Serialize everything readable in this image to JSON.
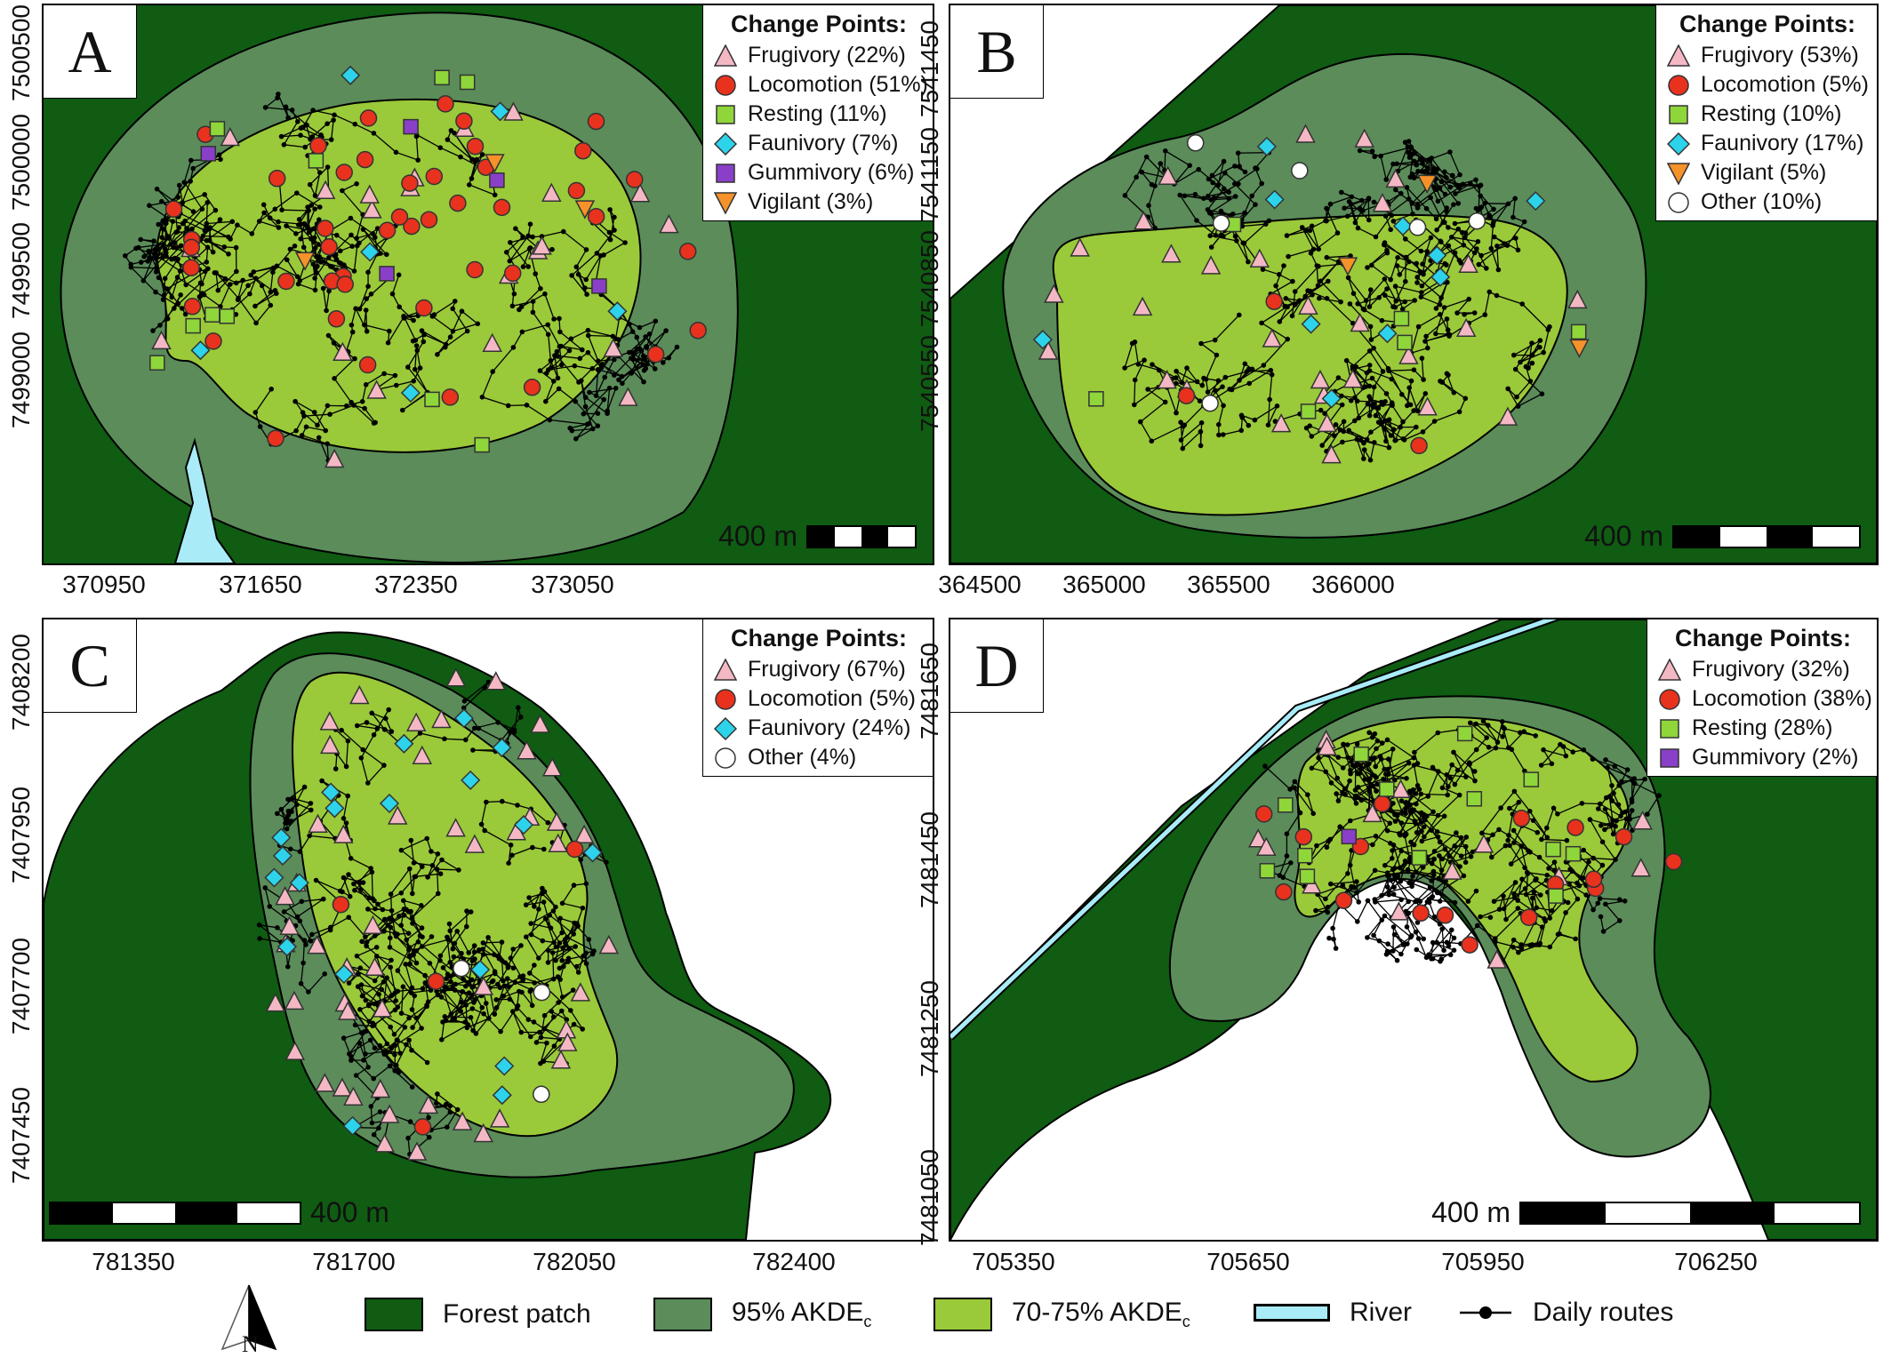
{
  "panels": [
    {
      "id": "A",
      "letter": "A",
      "legend_title": "Change Points:",
      "legend": [
        {
          "shape": "triangle",
          "color": "#f4b8c4",
          "label": "Frugivory (22%)"
        },
        {
          "shape": "circle",
          "color": "#e8321e",
          "label": "Locomotion (51%)"
        },
        {
          "shape": "square",
          "color": "#8fd63a",
          "label": "Resting (11%)"
        },
        {
          "shape": "diamond",
          "color": "#2cd3ea",
          "label": "Faunivory (7%)"
        },
        {
          "shape": "square",
          "color": "#8a3fc8",
          "label": "Gummivory (6%)"
        },
        {
          "shape": "invtriangle",
          "color": "#f5922a",
          "label": "Vigilant (3%)"
        }
      ],
      "scale_label": "400 m",
      "y_ticks": [
        "7500500",
        "7500000",
        "7499500",
        "7499000"
      ],
      "x_ticks": [
        "370950",
        "371650",
        "372350",
        "373050"
      ]
    },
    {
      "id": "B",
      "letter": "B",
      "legend_title": "Change Points:",
      "legend": [
        {
          "shape": "triangle",
          "color": "#f4b8c4",
          "label": "Frugivory (53%)"
        },
        {
          "shape": "circle",
          "color": "#e8321e",
          "label": "Locomotion (5%)"
        },
        {
          "shape": "square",
          "color": "#8fd63a",
          "label": "Resting (10%)"
        },
        {
          "shape": "diamond",
          "color": "#2cd3ea",
          "label": "Faunivory (17%)"
        },
        {
          "shape": "invtriangle",
          "color": "#f5922a",
          "label": "Vigilant (5%)"
        },
        {
          "shape": "circle",
          "color": "#ffffff",
          "label": "Other (10%)"
        }
      ],
      "scale_label": "400 m",
      "y_ticks": [
        "7541450",
        "7541150",
        "7540850",
        "7540550"
      ],
      "x_ticks": [
        "364500",
        "365000",
        "365500",
        "366000"
      ]
    },
    {
      "id": "C",
      "letter": "C",
      "legend_title": "Change Points:",
      "legend": [
        {
          "shape": "triangle",
          "color": "#f4b8c4",
          "label": "Frugivory (67%)"
        },
        {
          "shape": "circle",
          "color": "#e8321e",
          "label": "Locomotion (5%)"
        },
        {
          "shape": "diamond",
          "color": "#2cd3ea",
          "label": "Faunivory (24%)"
        },
        {
          "shape": "circle",
          "color": "#ffffff",
          "label": "Other (4%)"
        }
      ],
      "scale_label": "400 m",
      "y_ticks": [
        "7408200",
        "7407950",
        "7407700",
        "7407450"
      ],
      "x_ticks": [
        "781350",
        "781700",
        "782050",
        "782400"
      ]
    },
    {
      "id": "D",
      "letter": "D",
      "legend_title": "Change Points:",
      "legend": [
        {
          "shape": "triangle",
          "color": "#f4b8c4",
          "label": "Frugivory (32%)"
        },
        {
          "shape": "circle",
          "color": "#e8321e",
          "label": "Locomotion (38%)"
        },
        {
          "shape": "square",
          "color": "#8fd63a",
          "label": "Resting (28%)"
        },
        {
          "shape": "square",
          "color": "#8a3fc8",
          "label": "Gummivory (2%)"
        }
      ],
      "scale_label": "400 m",
      "y_ticks": [
        "7481650",
        "7481450",
        "7481250",
        "7481050"
      ],
      "x_ticks": [
        "705350",
        "705650",
        "705950",
        "706250"
      ]
    }
  ],
  "legend_bottom": {
    "compass_letter": "N",
    "items": [
      {
        "label": "Forest patch",
        "color": "#0f5c12"
      },
      {
        "label": "95% AKDE",
        "sub": "c",
        "color": "#5b8c5a"
      },
      {
        "label": "70-75% AKDE",
        "sub": "c",
        "color": "#9ac93a"
      },
      {
        "label": "River",
        "color": "#a9ecf7"
      },
      {
        "label": "Daily routes",
        "color": "#000000"
      }
    ]
  },
  "colors": {
    "forest": "#0f5c12",
    "akde95": "#5b8c5a",
    "akde70": "#9ac93a",
    "river": "#a9ecf7",
    "frugivory": "#f4b8c4",
    "locomotion": "#e8321e",
    "resting": "#8fd63a",
    "faunivory": "#2cd3ea",
    "gummivory": "#8a3fc8",
    "vigilant": "#f5922a"
  }
}
